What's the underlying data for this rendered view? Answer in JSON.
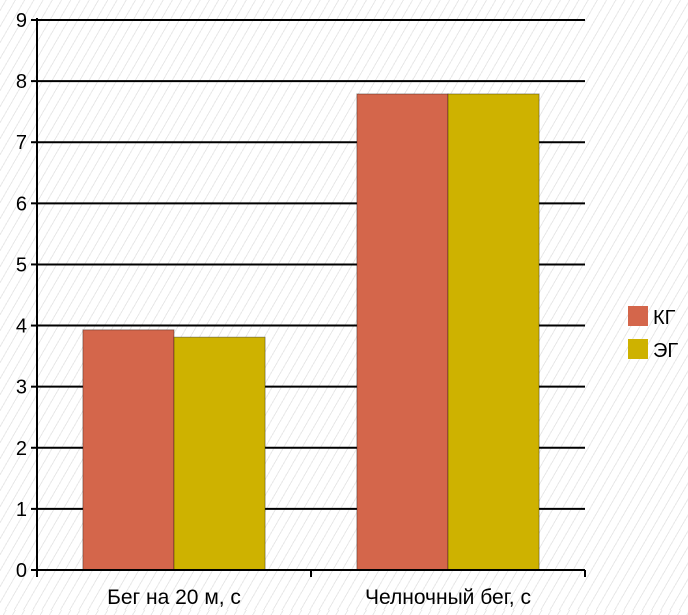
{
  "chart_data": {
    "type": "bar",
    "title": "",
    "xlabel": "",
    "ylabel": "",
    "categories": [
      "Бег на 20 м, с",
      "Челночный бег, с"
    ],
    "series": [
      {
        "name": "КГ",
        "values": [
          3.93,
          7.79
        ],
        "color": "#d4664b"
      },
      {
        "name": "ЭГ",
        "values": [
          3.81,
          7.79
        ],
        "color": "#ceb200"
      }
    ],
    "ylim": [
      0,
      9
    ],
    "yticks": [
      0,
      1,
      2,
      3,
      4,
      5,
      6,
      7,
      8,
      9
    ],
    "grid": true,
    "legend": "right"
  }
}
